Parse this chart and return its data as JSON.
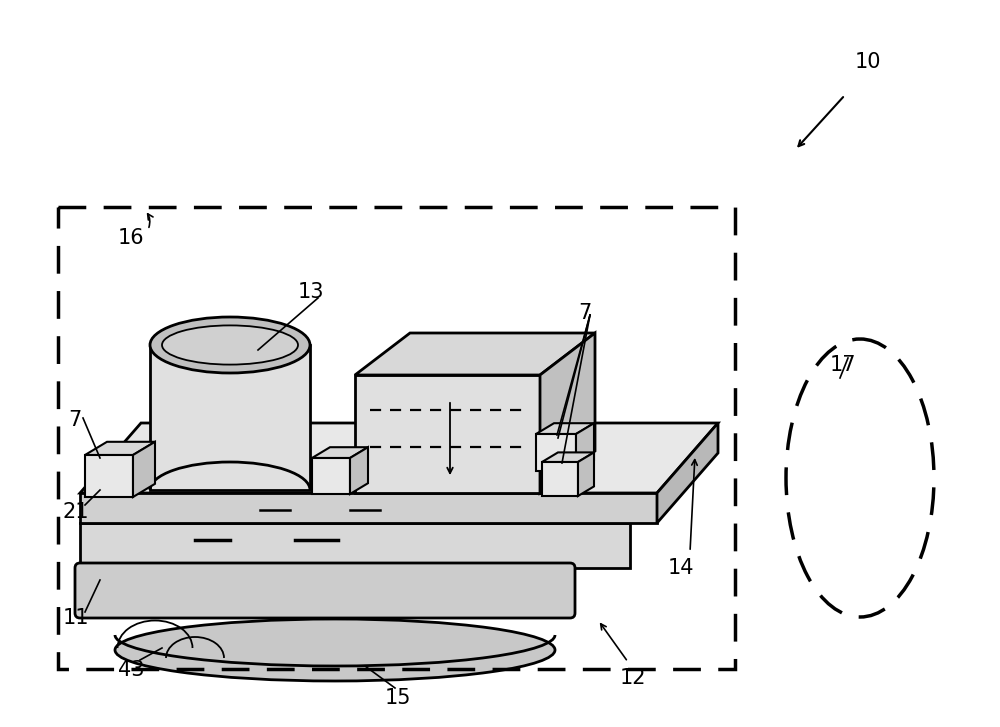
{
  "bg_color": "#ffffff",
  "line_color": "#000000",
  "label_color": "#000000",
  "lw_main": 2.0,
  "lw_thin": 1.3,
  "lw_dash": 2.5,
  "figsize": [
    10.0,
    7.27
  ],
  "dpi": 100,
  "label_fs": 15
}
